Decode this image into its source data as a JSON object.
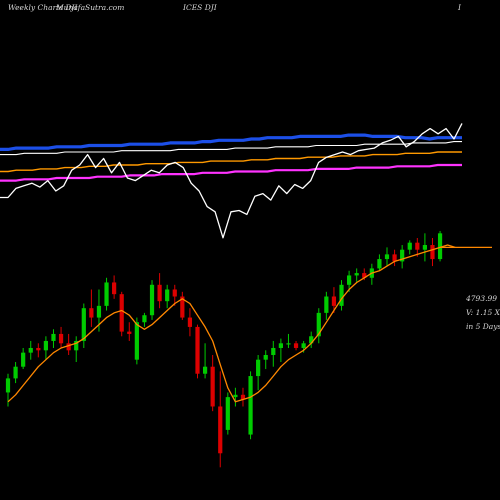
{
  "header": {
    "left": "Weekly Charts DJI",
    "site": "MunafaSutra.com",
    "center": "ICES DJI",
    "right": "I"
  },
  "info": {
    "price": "4793.99",
    "volume": "V: 1.15 X",
    "period": "in 5 Days"
  },
  "colors": {
    "background": "#000000",
    "up": "#00cc00",
    "down": "#dd0000",
    "ma_short": "#ff8800",
    "ma_blue": "#1c4fe8",
    "ma_white": "#ffffff",
    "ma_orange": "#ff9900",
    "ma_magenta": "#ff33ff"
  },
  "chart_data": [
    {
      "type": "line",
      "panel": "indicator",
      "y_range": [
        0,
        100
      ],
      "series": [
        {
          "key": "blue_ma",
          "values": [
            62,
            62,
            63,
            63,
            63,
            63,
            63,
            64,
            64,
            64,
            64,
            65,
            65,
            65,
            65,
            65,
            66,
            66,
            66,
            66,
            66,
            67,
            67,
            67,
            67,
            68,
            68,
            69,
            69,
            69,
            69,
            70,
            70,
            71,
            71,
            71,
            71,
            72,
            72,
            72,
            72,
            72,
            72,
            73,
            73,
            73,
            72,
            72,
            72,
            72,
            71,
            71,
            71,
            70,
            71,
            71,
            71,
            71
          ]
        },
        {
          "key": "white_ma",
          "values": [
            58,
            58,
            58,
            59,
            59,
            59,
            59,
            59,
            60,
            60,
            60,
            60,
            60,
            60,
            60,
            61,
            61,
            61,
            61,
            61,
            61,
            61,
            62,
            62,
            62,
            62,
            62,
            62,
            62,
            63,
            63,
            63,
            63,
            63,
            64,
            64,
            64,
            64,
            64,
            65,
            65,
            65,
            65,
            65,
            65,
            66,
            66,
            66,
            66,
            66,
            66,
            67,
            67,
            67,
            67,
            67,
            68,
            68
          ]
        },
        {
          "key": "orange_ma",
          "values": [
            45,
            45,
            46,
            46,
            46,
            47,
            47,
            47,
            48,
            48,
            48,
            49,
            49,
            49,
            50,
            50,
            50,
            50,
            51,
            51,
            51,
            51,
            52,
            52,
            52,
            52,
            53,
            53,
            53,
            53,
            53,
            54,
            54,
            54,
            55,
            55,
            55,
            55,
            56,
            56,
            56,
            56,
            57,
            57,
            57,
            57,
            58,
            58,
            58,
            58,
            59,
            59,
            59,
            59,
            60,
            60,
            60,
            60
          ]
        },
        {
          "key": "magenta_ma",
          "values": [
            38,
            38,
            38,
            39,
            39,
            39,
            39,
            40,
            40,
            40,
            40,
            40,
            41,
            41,
            41,
            41,
            42,
            42,
            42,
            42,
            43,
            43,
            43,
            43,
            43,
            44,
            44,
            44,
            44,
            45,
            45,
            45,
            45,
            45,
            46,
            46,
            46,
            46,
            46,
            47,
            47,
            47,
            47,
            47,
            48,
            48,
            48,
            48,
            48,
            49,
            49,
            49,
            49,
            49,
            50,
            50,
            50,
            50
          ]
        },
        {
          "key": "white_osc",
          "values": [
            25,
            25,
            32,
            34,
            36,
            33,
            38,
            30,
            34,
            46,
            50,
            58,
            48,
            55,
            44,
            52,
            40,
            38,
            42,
            46,
            44,
            50,
            52,
            48,
            36,
            30,
            18,
            14,
            -6,
            14,
            15,
            12,
            26,
            28,
            23,
            34,
            28,
            35,
            32,
            38,
            52,
            56,
            58,
            60,
            58,
            61,
            62,
            63,
            67,
            69,
            72,
            64,
            68,
            74,
            78,
            74,
            78,
            70,
            82
          ]
        }
      ]
    },
    {
      "type": "candlestick",
      "panel": "price",
      "y_range": [
        0,
        100
      ],
      "candles": [
        {
          "o": 34,
          "h": 42,
          "l": 28,
          "c": 40
        },
        {
          "o": 40,
          "h": 47,
          "l": 38,
          "c": 45
        },
        {
          "o": 45,
          "h": 53,
          "l": 44,
          "c": 51
        },
        {
          "o": 51,
          "h": 56,
          "l": 48,
          "c": 53
        },
        {
          "o": 53,
          "h": 55,
          "l": 49,
          "c": 52
        },
        {
          "o": 52,
          "h": 58,
          "l": 48,
          "c": 56
        },
        {
          "o": 56,
          "h": 61,
          "l": 53,
          "c": 59
        },
        {
          "o": 59,
          "h": 62,
          "l": 53,
          "c": 55
        },
        {
          "o": 55,
          "h": 59,
          "l": 50,
          "c": 52
        },
        {
          "o": 52,
          "h": 58,
          "l": 47,
          "c": 56
        },
        {
          "o": 56,
          "h": 72,
          "l": 53,
          "c": 70
        },
        {
          "o": 70,
          "h": 78,
          "l": 62,
          "c": 66
        },
        {
          "o": 66,
          "h": 78,
          "l": 60,
          "c": 71
        },
        {
          "o": 71,
          "h": 83,
          "l": 69,
          "c": 81
        },
        {
          "o": 81,
          "h": 84,
          "l": 74,
          "c": 76
        },
        {
          "o": 76,
          "h": 77,
          "l": 58,
          "c": 60
        },
        {
          "o": 60,
          "h": 64,
          "l": 56,
          "c": 59
        },
        {
          "o": 48,
          "h": 66,
          "l": 46,
          "c": 64
        },
        {
          "o": 64,
          "h": 68,
          "l": 62,
          "c": 67
        },
        {
          "o": 67,
          "h": 82,
          "l": 65,
          "c": 80
        },
        {
          "o": 80,
          "h": 85,
          "l": 70,
          "c": 73
        },
        {
          "o": 73,
          "h": 80,
          "l": 70,
          "c": 78
        },
        {
          "o": 78,
          "h": 80,
          "l": 71,
          "c": 75
        },
        {
          "o": 75,
          "h": 77,
          "l": 65,
          "c": 66
        },
        {
          "o": 66,
          "h": 70,
          "l": 58,
          "c": 62
        },
        {
          "o": 62,
          "h": 63,
          "l": 40,
          "c": 42
        },
        {
          "o": 42,
          "h": 55,
          "l": 40,
          "c": 45
        },
        {
          "o": 45,
          "h": 50,
          "l": 26,
          "c": 28
        },
        {
          "o": 28,
          "h": 43,
          "l": 2,
          "c": 8
        },
        {
          "o": 18,
          "h": 34,
          "l": 16,
          "c": 32
        },
        {
          "o": 32,
          "h": 36,
          "l": 28,
          "c": 33
        },
        {
          "o": 33,
          "h": 36,
          "l": 28,
          "c": 31
        },
        {
          "o": 16,
          "h": 43,
          "l": 14,
          "c": 41
        },
        {
          "o": 41,
          "h": 50,
          "l": 35,
          "c": 48
        },
        {
          "o": 48,
          "h": 52,
          "l": 44,
          "c": 50
        },
        {
          "o": 50,
          "h": 56,
          "l": 45,
          "c": 53
        },
        {
          "o": 53,
          "h": 57,
          "l": 47,
          "c": 55
        },
        {
          "o": 55,
          "h": 59,
          "l": 53,
          "c": 55
        },
        {
          "o": 55,
          "h": 56,
          "l": 52,
          "c": 53
        },
        {
          "o": 53,
          "h": 56,
          "l": 51,
          "c": 55
        },
        {
          "o": 55,
          "h": 60,
          "l": 53,
          "c": 58
        },
        {
          "o": 58,
          "h": 70,
          "l": 55,
          "c": 68
        },
        {
          "o": 68,
          "h": 77,
          "l": 65,
          "c": 75
        },
        {
          "o": 75,
          "h": 79,
          "l": 68,
          "c": 71
        },
        {
          "o": 71,
          "h": 82,
          "l": 69,
          "c": 80
        },
        {
          "o": 80,
          "h": 86,
          "l": 77,
          "c": 84
        },
        {
          "o": 84,
          "h": 87,
          "l": 81,
          "c": 85
        },
        {
          "o": 85,
          "h": 87,
          "l": 82,
          "c": 83
        },
        {
          "o": 83,
          "h": 89,
          "l": 80,
          "c": 87
        },
        {
          "o": 87,
          "h": 93,
          "l": 86,
          "c": 91
        },
        {
          "o": 91,
          "h": 96,
          "l": 88,
          "c": 93
        },
        {
          "o": 93,
          "h": 95,
          "l": 88,
          "c": 90
        },
        {
          "o": 90,
          "h": 97,
          "l": 87,
          "c": 95
        },
        {
          "o": 95,
          "h": 99,
          "l": 93,
          "c": 98
        },
        {
          "o": 98,
          "h": 100,
          "l": 92,
          "c": 95
        },
        {
          "o": 95,
          "h": 102,
          "l": 90,
          "c": 97
        },
        {
          "o": 97,
          "h": 100,
          "l": 88,
          "c": 91
        },
        {
          "o": 91,
          "h": 103,
          "l": 90,
          "c": 102
        }
      ],
      "series": [
        {
          "key": "price_ma",
          "values": [
            30,
            33,
            37,
            41,
            45,
            48,
            51,
            53,
            54,
            55,
            57,
            60,
            63,
            66,
            68,
            69,
            67,
            63,
            61,
            63,
            66,
            69,
            72,
            74,
            72,
            67,
            62,
            56,
            46,
            36,
            30,
            31,
            32,
            34,
            37,
            41,
            45,
            48,
            50,
            52,
            55,
            59,
            64,
            69,
            74,
            78,
            81,
            83,
            85,
            86,
            88,
            90,
            91,
            92,
            93,
            94,
            95,
            96,
            97,
            96
          ]
        }
      ],
      "last_price_line": 96
    }
  ]
}
